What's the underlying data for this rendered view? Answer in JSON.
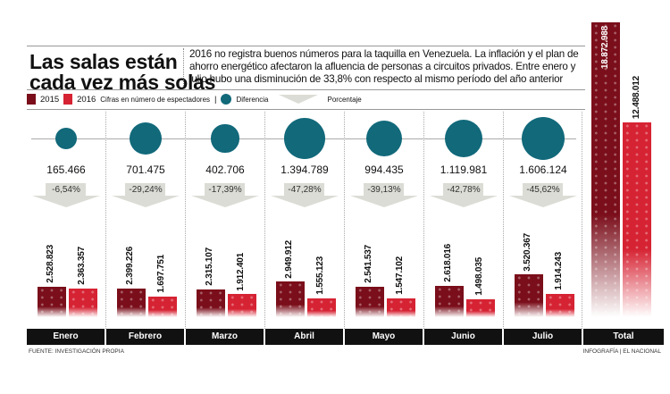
{
  "header": {
    "title_line1": "Las salas están",
    "title_line2": "cada vez más solas",
    "intro": "2016 no registra buenos números para la taquilla en Venezuela. La inflación y el plan de ahorro energético afectaron la afluencia de personas a circuitos privados. Entre enero y julio hubo una disminución de 33,8% con respecto al mismo período del año anterior"
  },
  "legend": {
    "y2015": "2015",
    "y2016": "2016",
    "note": "Cifras en número de espectadores",
    "diff": "Diferencia",
    "pct": "Porcentaje"
  },
  "colors": {
    "y2015": "#7a0e1a",
    "y2016": "#d62333",
    "diff": "#11697a",
    "arrow": "#dcdcd6"
  },
  "chart_data": {
    "type": "bar",
    "categories": [
      "Enero",
      "Febrero",
      "Marzo",
      "Abril",
      "Mayo",
      "Junio",
      "Julio"
    ],
    "series": [
      {
        "name": "2015",
        "values": [
          2528823,
          2399226,
          2315107,
          2949912,
          2541537,
          2618016,
          3520367
        ],
        "labels": [
          "2.528.823",
          "2.399.226",
          "2.315.107",
          "2.949.912",
          "2.541.537",
          "2.618.016",
          "3.520.367"
        ]
      },
      {
        "name": "2016",
        "values": [
          2363357,
          1697751,
          1912401,
          1555123,
          1547102,
          1498035,
          1914243
        ],
        "labels": [
          "2.363.357",
          "1.697.751",
          "1.912.401",
          "1.555.123",
          "1.547.102",
          "1.498.035",
          "1.914.243"
        ]
      }
    ],
    "difference": {
      "values": [
        165466,
        701475,
        402706,
        1394789,
        994435,
        1119981,
        1606124
      ],
      "labels": [
        "165.466",
        "701.475",
        "402.706",
        "1.394.789",
        "994.435",
        "1.119.981",
        "1.606.124"
      ]
    },
    "percent": [
      "-6,54%",
      "-29,24%",
      "-17,39%",
      "-47,28%",
      "-39,13%",
      "-42,78%",
      "-45,62%"
    ],
    "total": {
      "label": "Total",
      "y2015": 18872988,
      "y2016": 12488012,
      "y2015_label": "18.872.988",
      "y2016_label": "12.488.012"
    }
  },
  "footer": {
    "source": "FUENTE: INVESTIGACIÓN PROPIA",
    "credit": "INFOGRAFÍA | EL NACIONAL"
  }
}
